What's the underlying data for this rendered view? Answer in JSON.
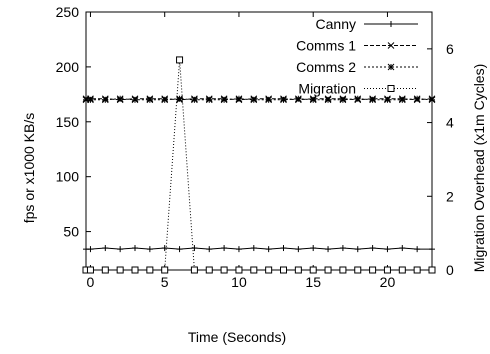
{
  "chart_data": {
    "type": "line",
    "title": "",
    "xlabel": "Time (Seconds)",
    "ylabel": "fps or x1000 KB/s",
    "y2label": "Migration Overhead (x1m Cycles)",
    "xlim": [
      -0.3,
      23
    ],
    "ylim": [
      15,
      250
    ],
    "y2lim": [
      0,
      7
    ],
    "xticks": [
      0,
      5,
      10,
      15,
      20
    ],
    "yticks": [
      50,
      100,
      150,
      200,
      250
    ],
    "y2ticks": [
      0,
      2,
      4,
      6
    ],
    "grid": false,
    "legend": "top-right",
    "series": [
      {
        "name": "Canny",
        "axis": "left",
        "marker": "plus",
        "dash": "",
        "x": [
          -0.3,
          0,
          1,
          2,
          3,
          4,
          5,
          6,
          7,
          8,
          9,
          10,
          11,
          12,
          13,
          14,
          15,
          16,
          17,
          18,
          19,
          20,
          21,
          22,
          23
        ],
        "y": [
          34,
          34,
          35,
          34,
          35,
          34,
          35,
          34,
          35,
          34,
          35,
          34,
          35,
          34,
          35,
          34,
          35,
          34,
          35,
          34,
          35,
          34,
          35,
          34,
          34
        ]
      },
      {
        "name": "Comms 1",
        "axis": "left",
        "marker": "x",
        "dash": "4,2",
        "x": [
          -0.3,
          0,
          1,
          2,
          3,
          4,
          5,
          6,
          7,
          8,
          9,
          10,
          11,
          12,
          13,
          14,
          15,
          16,
          17,
          18,
          19,
          20,
          21,
          22,
          23
        ],
        "y": [
          171,
          171,
          171,
          170,
          171,
          171,
          171,
          170,
          171,
          171,
          171,
          170,
          171,
          171,
          171,
          170,
          171,
          171,
          171,
          170,
          171,
          171,
          171,
          170,
          171
        ]
      },
      {
        "name": "Comms 2",
        "axis": "left",
        "marker": "star",
        "dash": "2,2",
        "x": [
          -0.3,
          0,
          1,
          2,
          3,
          4,
          5,
          6,
          7,
          8,
          9,
          10,
          11,
          12,
          13,
          14,
          15,
          16,
          17,
          18,
          19,
          20,
          21,
          22,
          23
        ],
        "y": [
          170,
          170,
          170,
          171,
          170,
          170,
          170,
          171,
          170,
          170,
          170,
          171,
          170,
          170,
          170,
          171,
          170,
          170,
          170,
          171,
          170,
          170,
          170,
          171,
          170
        ]
      },
      {
        "name": "Migration",
        "axis": "right",
        "marker": "square",
        "dash": "1,2",
        "x": [
          -0.3,
          0,
          1,
          2,
          3,
          4,
          5,
          6,
          7,
          8,
          9,
          10,
          11,
          12,
          13,
          14,
          15,
          16,
          17,
          18,
          19,
          20,
          21,
          22,
          23
        ],
        "y": [
          0,
          0,
          0,
          0,
          0,
          0,
          0,
          5.7,
          0,
          0,
          0,
          0,
          0,
          0,
          0,
          0,
          0,
          0,
          0,
          0,
          0,
          0,
          0,
          0,
          0
        ]
      }
    ]
  }
}
